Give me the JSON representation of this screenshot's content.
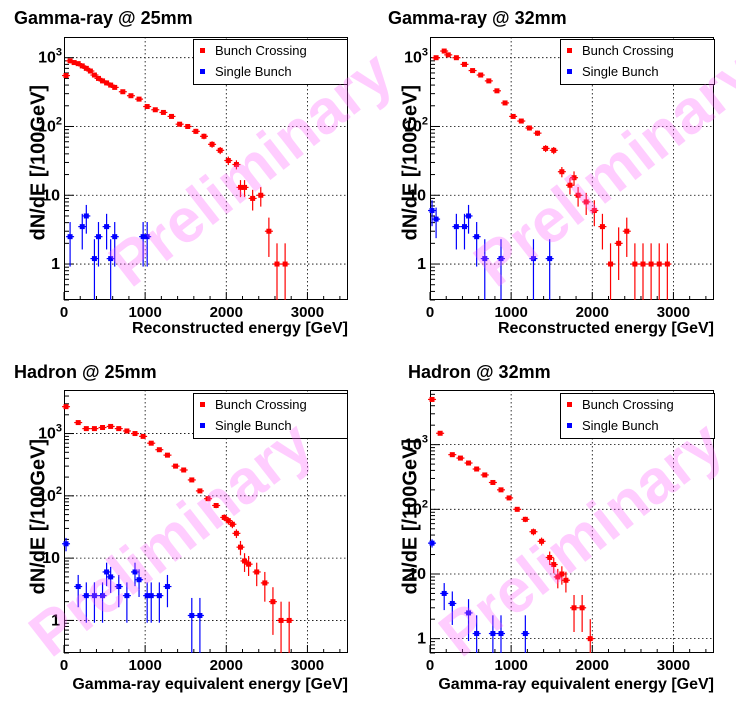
{
  "watermark": "Preliminary",
  "colors": {
    "bunch_crossing": "#ff0000",
    "single_bunch": "#0000ff",
    "watermark": "#ff5aff",
    "grid": "#000000"
  },
  "chart_data": [
    {
      "type": "scatter",
      "title": "Gamma-ray @ 25mm",
      "xlabel": "Reconstructed energy [GeV]",
      "ylabel": "dN/dE [/100GeV]",
      "xlim": [
        0,
        3500
      ],
      "ylim": [
        0.3,
        2000
      ],
      "yscale": "log",
      "xticks": [
        "0",
        "1000",
        "2000",
        "3000"
      ],
      "yticks": [
        "1",
        "10",
        "10^2",
        "10^3"
      ],
      "legend": "top-right",
      "series": [
        {
          "name": "Bunch Crossing",
          "color": "#ff0000",
          "points": [
            [
              25,
              550
            ],
            [
              75,
              900
            ],
            [
              125,
              850
            ],
            [
              175,
              820
            ],
            [
              225,
              760
            ],
            [
              275,
              700
            ],
            [
              325,
              640
            ],
            [
              375,
              560
            ],
            [
              425,
              500
            ],
            [
              475,
              460
            ],
            [
              525,
              430
            ],
            [
              575,
              400
            ],
            [
              625,
              370
            ],
            [
              725,
              320
            ],
            [
              825,
              280
            ],
            [
              925,
              250
            ],
            [
              1025,
              195
            ],
            [
              1125,
              175
            ],
            [
              1225,
              160
            ],
            [
              1325,
              140
            ],
            [
              1425,
              108
            ],
            [
              1525,
              100
            ],
            [
              1625,
              85
            ],
            [
              1725,
              72
            ],
            [
              1825,
              55
            ],
            [
              1925,
              45
            ],
            [
              2025,
              32
            ],
            [
              2125,
              28
            ],
            [
              2175,
              13
            ],
            [
              2225,
              13
            ],
            [
              2325,
              9
            ],
            [
              2425,
              10
            ],
            [
              2525,
              3
            ],
            [
              2625,
              1
            ],
            [
              2725,
              1
            ]
          ]
        },
        {
          "name": "Single Bunch",
          "color": "#0000ff",
          "points": [
            [
              75,
              2.5
            ],
            [
              225,
              3.5
            ],
            [
              275,
              5
            ],
            [
              375,
              1.2
            ],
            [
              425,
              2.5
            ],
            [
              525,
              3.5
            ],
            [
              575,
              1.2
            ],
            [
              625,
              2.5
            ],
            [
              975,
              2.5
            ],
            [
              1025,
              2.5
            ]
          ]
        }
      ]
    },
    {
      "type": "scatter",
      "title": "Gamma-ray @ 32mm",
      "xlabel": "Reconstructed energy [GeV]",
      "ylabel": "dN/dE [/100GeV]",
      "xlim": [
        0,
        3500
      ],
      "ylim": [
        0.3,
        2000
      ],
      "yscale": "log",
      "xticks": [
        "0",
        "1000",
        "2000",
        "3000"
      ],
      "yticks": [
        "1",
        "10",
        "10^2",
        "10^3"
      ],
      "legend": "top-right",
      "series": [
        {
          "name": "Bunch Crossing",
          "color": "#ff0000",
          "points": [
            [
              75,
              1000
            ],
            [
              175,
              1250
            ],
            [
              225,
              1100
            ],
            [
              325,
              1000
            ],
            [
              425,
              800
            ],
            [
              525,
              650
            ],
            [
              625,
              560
            ],
            [
              725,
              460
            ],
            [
              825,
              330
            ],
            [
              925,
              220
            ],
            [
              1025,
              140
            ],
            [
              1125,
              120
            ],
            [
              1225,
              95
            ],
            [
              1325,
              80
            ],
            [
              1425,
              48
            ],
            [
              1525,
              45
            ],
            [
              1625,
              22
            ],
            [
              1725,
              14
            ],
            [
              1775,
              18
            ],
            [
              1825,
              10
            ],
            [
              1925,
              8
            ],
            [
              2025,
              6
            ],
            [
              2125,
              3.5
            ],
            [
              2225,
              1
            ],
            [
              2325,
              2
            ],
            [
              2425,
              3
            ],
            [
              2525,
              1
            ],
            [
              2625,
              1
            ],
            [
              2725,
              1
            ],
            [
              2825,
              1
            ],
            [
              2925,
              1
            ]
          ]
        },
        {
          "name": "Single Bunch",
          "color": "#0000ff",
          "points": [
            [
              25,
              6
            ],
            [
              75,
              4.5
            ],
            [
              325,
              3.5
            ],
            [
              425,
              3.5
            ],
            [
              475,
              5
            ],
            [
              575,
              2.5
            ],
            [
              675,
              1.2
            ],
            [
              875,
              1.2
            ],
            [
              1275,
              1.2
            ],
            [
              1475,
              1.2
            ]
          ]
        }
      ]
    },
    {
      "type": "scatter",
      "title": "Hadron @ 25mm",
      "xlabel": "Gamma-ray equivalent energy [GeV]",
      "ylabel": "dN/dE [/100GeV]",
      "xlim": [
        0,
        3500
      ],
      "ylim": [
        0.3,
        5000
      ],
      "yscale": "log",
      "xticks": [
        "0",
        "1000",
        "2000",
        "3000"
      ],
      "yticks": [
        "1",
        "10",
        "10^2",
        "10^3"
      ],
      "legend": "top-right",
      "series": [
        {
          "name": "Bunch Crossing",
          "color": "#ff0000",
          "points": [
            [
              25,
              2700
            ],
            [
              175,
              1500
            ],
            [
              275,
              1200
            ],
            [
              375,
              1200
            ],
            [
              475,
              1250
            ],
            [
              575,
              1300
            ],
            [
              675,
              1200
            ],
            [
              775,
              1100
            ],
            [
              875,
              1000
            ],
            [
              975,
              900
            ],
            [
              1075,
              700
            ],
            [
              1175,
              550
            ],
            [
              1275,
              450
            ],
            [
              1375,
              300
            ],
            [
              1475,
              260
            ],
            [
              1575,
              180
            ],
            [
              1675,
              120
            ],
            [
              1775,
              90
            ],
            [
              1875,
              70
            ],
            [
              1975,
              45
            ],
            [
              2025,
              40
            ],
            [
              2075,
              35
            ],
            [
              2125,
              25
            ],
            [
              2175,
              15
            ],
            [
              2225,
              9
            ],
            [
              2275,
              8
            ],
            [
              2375,
              6
            ],
            [
              2475,
              4
            ],
            [
              2575,
              2
            ],
            [
              2675,
              1
            ],
            [
              2775,
              1
            ]
          ]
        },
        {
          "name": "Single Bunch",
          "color": "#0000ff",
          "points": [
            [
              25,
              17
            ],
            [
              175,
              3.5
            ],
            [
              275,
              2.5
            ],
            [
              375,
              2.5
            ],
            [
              475,
              2.5
            ],
            [
              525,
              6
            ],
            [
              575,
              5
            ],
            [
              675,
              3.5
            ],
            [
              775,
              2.5
            ],
            [
              875,
              6
            ],
            [
              925,
              4.5
            ],
            [
              1025,
              2.5
            ],
            [
              1075,
              2.5
            ],
            [
              1175,
              2.5
            ],
            [
              1275,
              3.5
            ],
            [
              1575,
              1.2
            ],
            [
              1675,
              1.2
            ]
          ]
        }
      ]
    },
    {
      "type": "scatter",
      "title": "Hadron @ 32mm",
      "xlabel": "Gamma-ray equivalent energy [GeV]",
      "ylabel": "dN/dE [/100GeV]",
      "xlim": [
        0,
        3500
      ],
      "ylim": [
        0.6,
        7000
      ],
      "yscale": "log",
      "xticks": [
        "0",
        "1000",
        "2000",
        "3000"
      ],
      "yticks": [
        "1",
        "10",
        "10^2",
        "10^3"
      ],
      "legend": "top-right",
      "series": [
        {
          "name": "Bunch Crossing",
          "color": "#ff0000",
          "points": [
            [
              25,
              5000
            ],
            [
              125,
              1500
            ],
            [
              275,
              700
            ],
            [
              375,
              620
            ],
            [
              475,
              520
            ],
            [
              575,
              420
            ],
            [
              675,
              340
            ],
            [
              775,
              260
            ],
            [
              875,
              200
            ],
            [
              975,
              150
            ],
            [
              1075,
              100
            ],
            [
              1175,
              70
            ],
            [
              1275,
              45
            ],
            [
              1375,
              32
            ],
            [
              1475,
              18
            ],
            [
              1525,
              14
            ],
            [
              1575,
              9
            ],
            [
              1625,
              10
            ],
            [
              1675,
              8
            ],
            [
              1775,
              3
            ],
            [
              1875,
              3
            ],
            [
              1975,
              1
            ]
          ]
        },
        {
          "name": "Single Bunch",
          "color": "#0000ff",
          "points": [
            [
              25,
              30
            ],
            [
              175,
              5
            ],
            [
              275,
              3.5
            ],
            [
              475,
              2.5
            ],
            [
              575,
              1.2
            ],
            [
              775,
              1.2
            ],
            [
              875,
              1.2
            ],
            [
              1175,
              1.2
            ]
          ]
        }
      ]
    }
  ]
}
